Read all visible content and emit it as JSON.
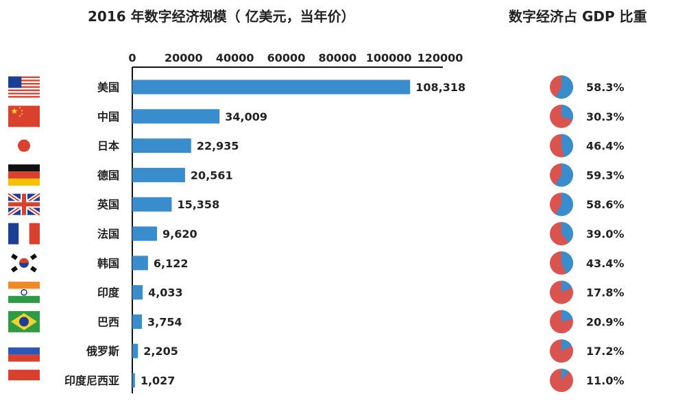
{
  "chart_data": [
    {
      "type": "bar",
      "orientation": "horizontal",
      "title": "2016 年数字经济规模（ 亿美元，当年价）",
      "xlim": [
        0,
        120000
      ],
      "ticks": [
        0,
        20000,
        40000,
        60000,
        80000,
        100000,
        120000
      ],
      "tick_labels": [
        "0",
        "20000",
        "40000",
        "60000",
        "80000",
        "100000",
        "120000"
      ],
      "categories": [
        "美国",
        "中国",
        "日本",
        "德国",
        "英国",
        "法国",
        "韩国",
        "印度",
        "巴西",
        "俄罗斯",
        "印度尼西亚"
      ],
      "values": [
        108318,
        34009,
        22935,
        20561,
        15358,
        9620,
        6122,
        4033,
        3754,
        2205,
        1027
      ],
      "value_labels": [
        "108,318",
        "34,009",
        "22,935",
        "20,561",
        "15,358",
        "9,620",
        "6,122",
        "4,033",
        "3,754",
        "2,205",
        "1,027"
      ],
      "bar_color": "#3a8dcc"
    },
    {
      "type": "pie",
      "title": "数字经济占 GDP 比重",
      "categories": [
        "美国",
        "中国",
        "日本",
        "德国",
        "英国",
        "法国",
        "韩国",
        "印度",
        "巴西",
        "俄罗斯",
        "印度尼西亚"
      ],
      "values": [
        58.3,
        30.3,
        46.4,
        59.3,
        58.6,
        39.0,
        43.4,
        17.8,
        20.9,
        17.2,
        11.0
      ],
      "value_labels": [
        "58.3%",
        "30.3%",
        "46.4%",
        "59.3%",
        "58.6%",
        "39.0%",
        "43.4%",
        "17.8%",
        "20.9%",
        "17.2%",
        "11.0%"
      ],
      "share_color": "#3a8dcc",
      "rest_color": "#d9534f"
    }
  ],
  "flags": [
    "usa-flag-icon",
    "china-flag-icon",
    "japan-flag-icon",
    "germany-flag-icon",
    "uk-flag-icon",
    "france-flag-icon",
    "korea-flag-icon",
    "india-flag-icon",
    "brazil-flag-icon",
    "russia-flag-icon",
    "indonesia-flag-icon"
  ],
  "colors": {
    "axis": "#111111",
    "text": "#222222",
    "flag_red": "#d9412e",
    "flag_blue": "#1c3f94",
    "flag_green": "#2f9a44",
    "flag_yellow": "#f3d02e",
    "flag_orange": "#f08a24"
  }
}
